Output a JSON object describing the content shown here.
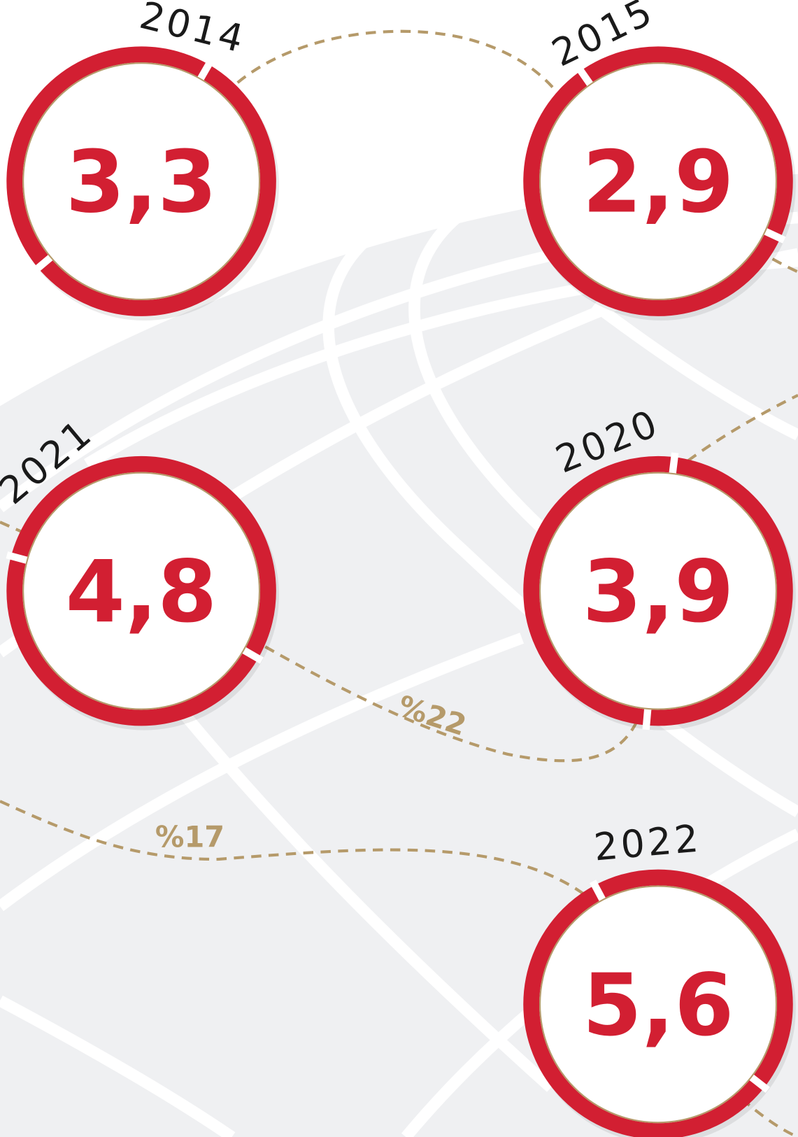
{
  "nodes": [
    {
      "year": "2014",
      "value": "3,3"
    },
    {
      "year": "2015",
      "value": "2,9"
    },
    {
      "year": "2021",
      "value": "4,8"
    },
    {
      "year": "2020",
      "value": "3,9"
    },
    {
      "year": "2022",
      "value": "5,6"
    }
  ],
  "connectors": [
    {
      "label": "%22"
    },
    {
      "label": "%17"
    }
  ]
}
